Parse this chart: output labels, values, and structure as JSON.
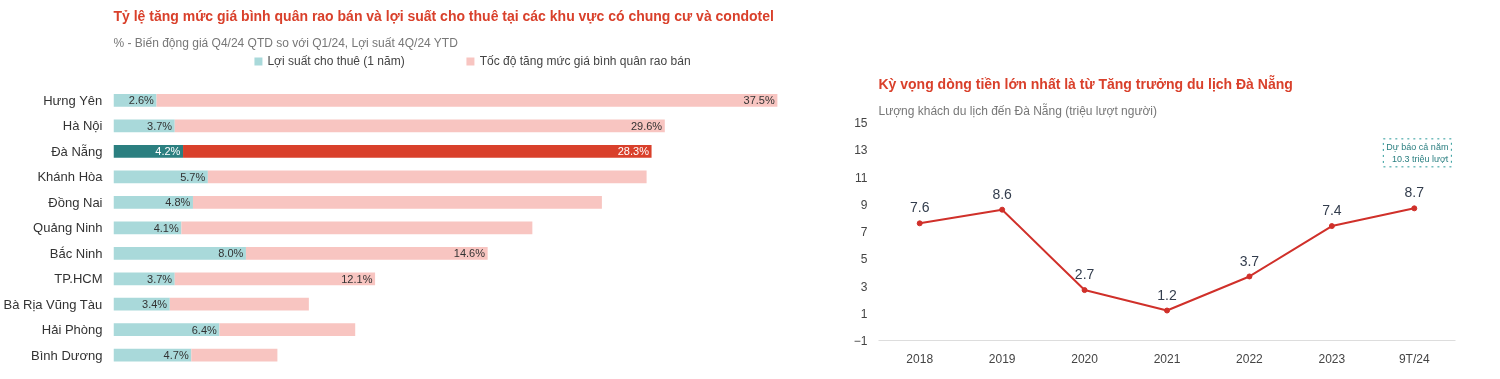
{
  "chart_data": [
    {
      "type": "bar",
      "orientation": "horizontal",
      "stacked": true,
      "title": "Tỷ lệ tăng mức giá bình quân rao bán và lợi suất cho thuê tại các khu vực có chung cư và condotel",
      "subtitle": "% - Biến động giá Q4/24 QTD so với Q1/24, Lợi suất 4Q/24 YTD",
      "categories": [
        "Hưng Yên",
        "Hà Nội",
        "Đà Nẵng",
        "Khánh Hòa",
        "Đồng Nai",
        "Quảng Ninh",
        "Bắc Ninh",
        "TP.HCM",
        "Bà Rịa Vũng Tàu",
        "Hải Phòng",
        "Bình Dương"
      ],
      "legend": "top",
      "tick_labels": "y",
      "grid": false,
      "series": [
        {
          "name": "Lợi suất cho thuê (1 năm)",
          "color": "#a9d9da",
          "colors": [
            "#a9d9da",
            "#a9d9da",
            "#2b7f80",
            "#a9d9da",
            "#a9d9da",
            "#a9d9da",
            "#a9d9da",
            "#a9d9da",
            "#a9d9da",
            "#a9d9da",
            "#a9d9da"
          ],
          "values": [
            2.6,
            3.7,
            4.2,
            5.7,
            4.8,
            4.1,
            8.0,
            3.7,
            3.4,
            6.4,
            4.7
          ],
          "value_labels": [
            "2.6%",
            "3.7%",
            "4.2%",
            "5.7%",
            "4.8%",
            "4.1%",
            "8.0%",
            "3.7%",
            "3.4%",
            "6.4%",
            "4.7%"
          ]
        },
        {
          "name": "Tốc độ tăng mức giá bình quân rao bán",
          "color": "#f8c5c1",
          "colors": [
            "#f8c5c1",
            "#f8c5c1",
            "#d9402b",
            "#f8c5c1",
            "#f8c5c1",
            "#f8c5c1",
            "#f8c5c1",
            "#f8c5c1",
            "#f8c5c1",
            "#f8c5c1",
            "#f8c5c1"
          ],
          "values": [
            37.5,
            29.6,
            28.3,
            26.5,
            24.7,
            21.2,
            14.6,
            12.1,
            8.4,
            8.2,
            5.2
          ],
          "value_labels": [
            "37.5%",
            "29.6%",
            "28.3%",
            null,
            null,
            null,
            "14.6%",
            "12.1%",
            null,
            null,
            null
          ]
        }
      ]
    },
    {
      "type": "line",
      "title": "Kỳ vọng dòng tiền lớn nhất là từ Tăng trưởng du lịch Đà Nẵng",
      "subtitle": "Lượng khách du lịch đến Đà Nẵng (triệu lượt người)",
      "categories": [
        "2018",
        "2019",
        "2020",
        "2021",
        "2022",
        "2023",
        "9T/24"
      ],
      "values": [
        7.6,
        8.6,
        2.7,
        1.2,
        3.7,
        7.4,
        8.7
      ],
      "color": "#d0302a",
      "ylim": [
        -1,
        15
      ],
      "yticks": [
        -1,
        1,
        3,
        5,
        7,
        9,
        11,
        13,
        15
      ],
      "data_labels": true,
      "marker": "circle",
      "line_style": "solid",
      "grid": false,
      "annotations": [
        "Dự báo cả năm\n10.3 triệu lượt"
      ]
    }
  ]
}
